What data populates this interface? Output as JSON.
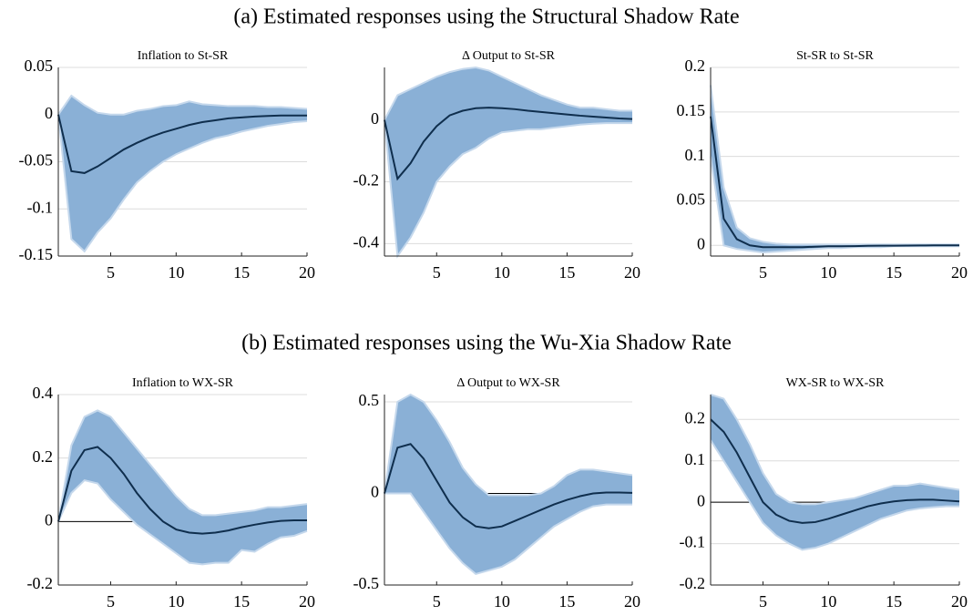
{
  "panel_titles": [
    "(a) Estimated responses using the Structural Shadow Rate",
    "(b) Estimated responses using the Wu-Xia Shadow Rate"
  ],
  "chart_data": [
    {
      "type": "line",
      "title": "Inflation to St-SR",
      "x": [
        1,
        2,
        3,
        4,
        5,
        6,
        7,
        8,
        9,
        10,
        11,
        12,
        13,
        14,
        15,
        16,
        17,
        18,
        19,
        20
      ],
      "xlim": [
        1,
        20
      ],
      "xticks": [
        5,
        10,
        15,
        20
      ],
      "ylim": [
        -0.15,
        0.05
      ],
      "yticks": [
        -0.15,
        -0.1,
        -0.05,
        0,
        0.05
      ],
      "grid": true,
      "series": [
        {
          "color": "#0f2e4d",
          "values": [
            0,
            -0.06,
            -0.062,
            -0.055,
            -0.046,
            -0.037,
            -0.03,
            -0.024,
            -0.019,
            -0.015,
            -0.011,
            -0.008,
            -0.006,
            -0.004,
            -0.003,
            -0.002,
            -0.0015,
            -0.001,
            -0.001,
            -0.001
          ]
        }
      ],
      "band": {
        "color": "#8ab0d6",
        "edge_color": "#c5d8ec",
        "upper": [
          0,
          0.02,
          0.01,
          0.002,
          0,
          0,
          0.004,
          0.006,
          0.009,
          0.01,
          0.014,
          0.011,
          0.01,
          0.009,
          0.009,
          0.009,
          0.008,
          0.008,
          0.007,
          0.006
        ],
        "lower": [
          0,
          -0.132,
          -0.145,
          -0.125,
          -0.11,
          -0.09,
          -0.072,
          -0.06,
          -0.05,
          -0.042,
          -0.036,
          -0.03,
          -0.025,
          -0.022,
          -0.018,
          -0.015,
          -0.012,
          -0.01,
          -0.008,
          -0.007
        ]
      }
    },
    {
      "type": "line",
      "title": "Δ Output to St-SR",
      "x": [
        1,
        2,
        3,
        4,
        5,
        6,
        7,
        8,
        9,
        10,
        11,
        12,
        13,
        14,
        15,
        16,
        17,
        18,
        19,
        20
      ],
      "xlim": [
        1,
        20
      ],
      "xticks": [
        5,
        10,
        15,
        20
      ],
      "ylim": [
        -0.44,
        0.17
      ],
      "yticks": [
        -0.4,
        -0.2,
        0
      ],
      "grid": true,
      "series": [
        {
          "color": "#0f2e4d",
          "values": [
            0,
            -0.19,
            -0.14,
            -0.07,
            -0.02,
            0.015,
            0.03,
            0.038,
            0.04,
            0.038,
            0.035,
            0.03,
            0.026,
            0.022,
            0.018,
            0.014,
            0.011,
            0.008,
            0.005,
            0.003
          ]
        }
      ],
      "band": {
        "color": "#8ab0d6",
        "edge_color": "#c5d8ec",
        "upper": [
          0,
          0.08,
          0.1,
          0.12,
          0.14,
          0.155,
          0.165,
          0.17,
          0.16,
          0.14,
          0.12,
          0.1,
          0.08,
          0.065,
          0.05,
          0.04,
          0.04,
          0.035,
          0.03,
          0.03
        ],
        "lower": [
          0,
          -0.44,
          -0.38,
          -0.3,
          -0.2,
          -0.15,
          -0.11,
          -0.09,
          -0.06,
          -0.04,
          -0.035,
          -0.03,
          -0.03,
          -0.025,
          -0.02,
          -0.015,
          -0.012,
          -0.01,
          -0.01,
          -0.01
        ]
      }
    },
    {
      "type": "line",
      "title": "St-SR to St-SR",
      "x": [
        1,
        2,
        3,
        4,
        5,
        6,
        7,
        8,
        9,
        10,
        11,
        12,
        13,
        14,
        15,
        16,
        17,
        18,
        19,
        20
      ],
      "xlim": [
        1,
        20
      ],
      "xticks": [
        5,
        10,
        15,
        20
      ],
      "ylim": [
        -0.012,
        0.2
      ],
      "yticks": [
        0,
        0.05,
        0.1,
        0.15,
        0.2
      ],
      "grid": true,
      "series": [
        {
          "color": "#0f2e4d",
          "values": [
            0.145,
            0.03,
            0.007,
            0,
            -0.002,
            -0.002,
            -0.002,
            -0.002,
            -0.0015,
            -0.001,
            -0.001,
            -0.0008,
            -0.0005,
            -0.0004,
            -0.0003,
            -0.0002,
            -0.0001,
            0,
            0,
            0
          ]
        }
      ],
      "band": {
        "color": "#8ab0d6",
        "edge_color": "#c5d8ec",
        "upper": [
          0.18,
          0.065,
          0.02,
          0.008,
          0.004,
          0.002,
          0.001,
          0.001,
          0.001,
          0.001,
          0.001,
          0.001,
          0.001,
          0.001,
          0.001,
          0.001,
          0.001,
          0.001,
          0.001,
          0.001
        ],
        "lower": [
          0.1,
          0,
          -0.004,
          -0.006,
          -0.008,
          -0.007,
          -0.006,
          -0.005,
          -0.004,
          -0.003,
          -0.003,
          -0.002,
          -0.002,
          -0.002,
          -0.001,
          -0.001,
          -0.001,
          -0.001,
          -0.001,
          -0.001
        ]
      }
    },
    {
      "type": "line",
      "title": "Inflation to WX-SR",
      "x": [
        1,
        2,
        3,
        4,
        5,
        6,
        7,
        8,
        9,
        10,
        11,
        12,
        13,
        14,
        15,
        16,
        17,
        18,
        19,
        20
      ],
      "xlim": [
        1,
        20
      ],
      "xticks": [
        5,
        10,
        15,
        20
      ],
      "ylim": [
        -0.2,
        0.4
      ],
      "yticks": [
        -0.2,
        0,
        0.2,
        0.4
      ],
      "grid": true,
      "zero_line": true,
      "series": [
        {
          "color": "#0f2e4d",
          "values": [
            0,
            0.16,
            0.225,
            0.235,
            0.2,
            0.15,
            0.09,
            0.04,
            0,
            -0.025,
            -0.035,
            -0.038,
            -0.035,
            -0.028,
            -0.018,
            -0.01,
            -0.003,
            0.002,
            0.004,
            0.004
          ]
        }
      ],
      "band": {
        "color": "#8ab0d6",
        "edge_color": "#c5d8ec",
        "upper": [
          0,
          0.24,
          0.33,
          0.35,
          0.33,
          0.28,
          0.23,
          0.18,
          0.13,
          0.08,
          0.04,
          0.02,
          0.02,
          0.025,
          0.03,
          0.035,
          0.045,
          0.045,
          0.05,
          0.055
        ],
        "lower": [
          0,
          0.09,
          0.13,
          0.12,
          0.07,
          0.03,
          -0.01,
          -0.04,
          -0.07,
          -0.1,
          -0.13,
          -0.135,
          -0.13,
          -0.13,
          -0.09,
          -0.095,
          -0.07,
          -0.05,
          -0.045,
          -0.03
        ]
      }
    },
    {
      "type": "line",
      "title": "Δ Output to WX-SR",
      "x": [
        1,
        2,
        3,
        4,
        5,
        6,
        7,
        8,
        9,
        10,
        11,
        12,
        13,
        14,
        15,
        16,
        17,
        18,
        19,
        20
      ],
      "xlim": [
        1,
        20
      ],
      "xticks": [
        5,
        10,
        15,
        20
      ],
      "ylim": [
        -0.5,
        0.54
      ],
      "yticks": [
        -0.5,
        0,
        0.5
      ],
      "grid": true,
      "zero_line": true,
      "series": [
        {
          "color": "#0f2e4d",
          "values": [
            0,
            0.25,
            0.27,
            0.19,
            0.07,
            -0.05,
            -0.13,
            -0.18,
            -0.19,
            -0.18,
            -0.15,
            -0.12,
            -0.09,
            -0.06,
            -0.035,
            -0.015,
            0,
            0.005,
            0.005,
            0.003
          ]
        }
      ],
      "band": {
        "color": "#8ab0d6",
        "edge_color": "#c5d8ec",
        "upper": [
          0,
          0.5,
          0.54,
          0.5,
          0.4,
          0.28,
          0.14,
          0.05,
          -0.01,
          -0.01,
          -0.01,
          -0.01,
          0,
          0.04,
          0.1,
          0.13,
          0.13,
          0.12,
          0.11,
          0.1
        ],
        "lower": [
          0,
          0,
          0,
          -0.1,
          -0.2,
          -0.3,
          -0.38,
          -0.44,
          -0.42,
          -0.4,
          -0.36,
          -0.3,
          -0.24,
          -0.18,
          -0.14,
          -0.1,
          -0.07,
          -0.06,
          -0.06,
          -0.06
        ]
      }
    },
    {
      "type": "line",
      "title": "WX-SR to WX-SR",
      "x": [
        1,
        2,
        3,
        4,
        5,
        6,
        7,
        8,
        9,
        10,
        11,
        12,
        13,
        14,
        15,
        16,
        17,
        18,
        19,
        20
      ],
      "xlim": [
        1,
        20
      ],
      "xticks": [
        5,
        10,
        15,
        20
      ],
      "ylim": [
        -0.2,
        0.26
      ],
      "yticks": [
        -0.2,
        -0.1,
        0,
        0.1,
        0.2
      ],
      "grid": true,
      "zero_line": true,
      "series": [
        {
          "color": "#0f2e4d",
          "values": [
            0.2,
            0.17,
            0.12,
            0.06,
            0,
            -0.03,
            -0.045,
            -0.05,
            -0.048,
            -0.04,
            -0.03,
            -0.02,
            -0.01,
            -0.003,
            0.002,
            0.005,
            0.006,
            0.006,
            0.004,
            0.002
          ]
        }
      ],
      "band": {
        "color": "#8ab0d6",
        "edge_color": "#c5d8ec",
        "upper": [
          0.26,
          0.25,
          0.2,
          0.14,
          0.07,
          0.02,
          0,
          -0.005,
          -0.005,
          0,
          0.005,
          0.01,
          0.02,
          0.03,
          0.04,
          0.04,
          0.045,
          0.04,
          0.035,
          0.03
        ],
        "lower": [
          0.15,
          0.1,
          0.05,
          0,
          -0.05,
          -0.08,
          -0.1,
          -0.115,
          -0.11,
          -0.1,
          -0.085,
          -0.07,
          -0.055,
          -0.04,
          -0.03,
          -0.02,
          -0.015,
          -0.012,
          -0.01,
          -0.01
        ]
      }
    }
  ]
}
